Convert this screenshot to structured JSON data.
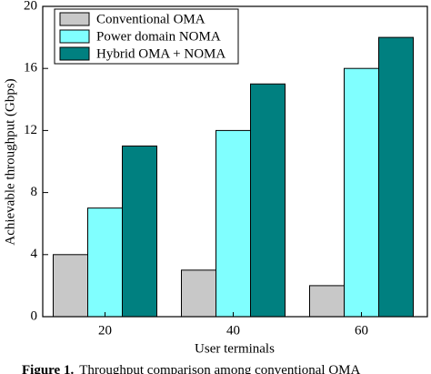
{
  "chart_data": {
    "type": "bar",
    "categories": [
      "20",
      "40",
      "60"
    ],
    "series": [
      {
        "name": "Conventional OMA",
        "color": "#c8c8c8",
        "values": [
          4,
          3,
          2
        ]
      },
      {
        "name": "Power domain NOMA",
        "color": "#80ffff",
        "values": [
          7,
          12,
          16
        ]
      },
      {
        "name": "Hybrid OMA + NOMA",
        "color": "#008080",
        "values": [
          11,
          15,
          18
        ]
      }
    ],
    "ylim": [
      0,
      20
    ],
    "yticks": [
      0,
      4,
      8,
      12,
      16,
      20
    ],
    "xlabel": "User terminals",
    "ylabel": "Achievable throughput (Gbps)",
    "legend": "upper-left",
    "caption_label": "Figure 1.",
    "caption": "Throughput comparison among conventional OMA"
  }
}
